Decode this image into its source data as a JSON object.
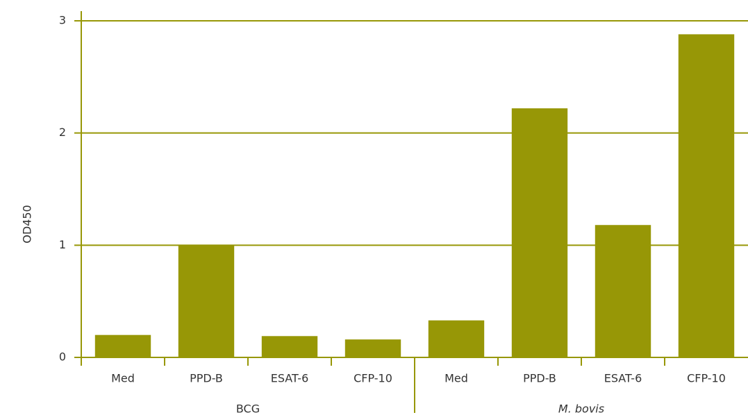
{
  "chart_data": {
    "type": "bar",
    "y_label": "OD450",
    "categories": [
      "Med",
      "PPD-B",
      "ESAT-6",
      "CFP-10",
      "Med",
      "PPD-B",
      "ESAT-6",
      "CFP-10"
    ],
    "groups": [
      "BCG",
      "M. bovis"
    ],
    "values": [
      0.2,
      1.0,
      0.19,
      0.16,
      0.33,
      2.22,
      1.18,
      2.88
    ],
    "color": "#979706",
    "ylim": [
      0,
      3
    ],
    "yticks": [
      0,
      1,
      2,
      3
    ],
    "grid": true
  }
}
